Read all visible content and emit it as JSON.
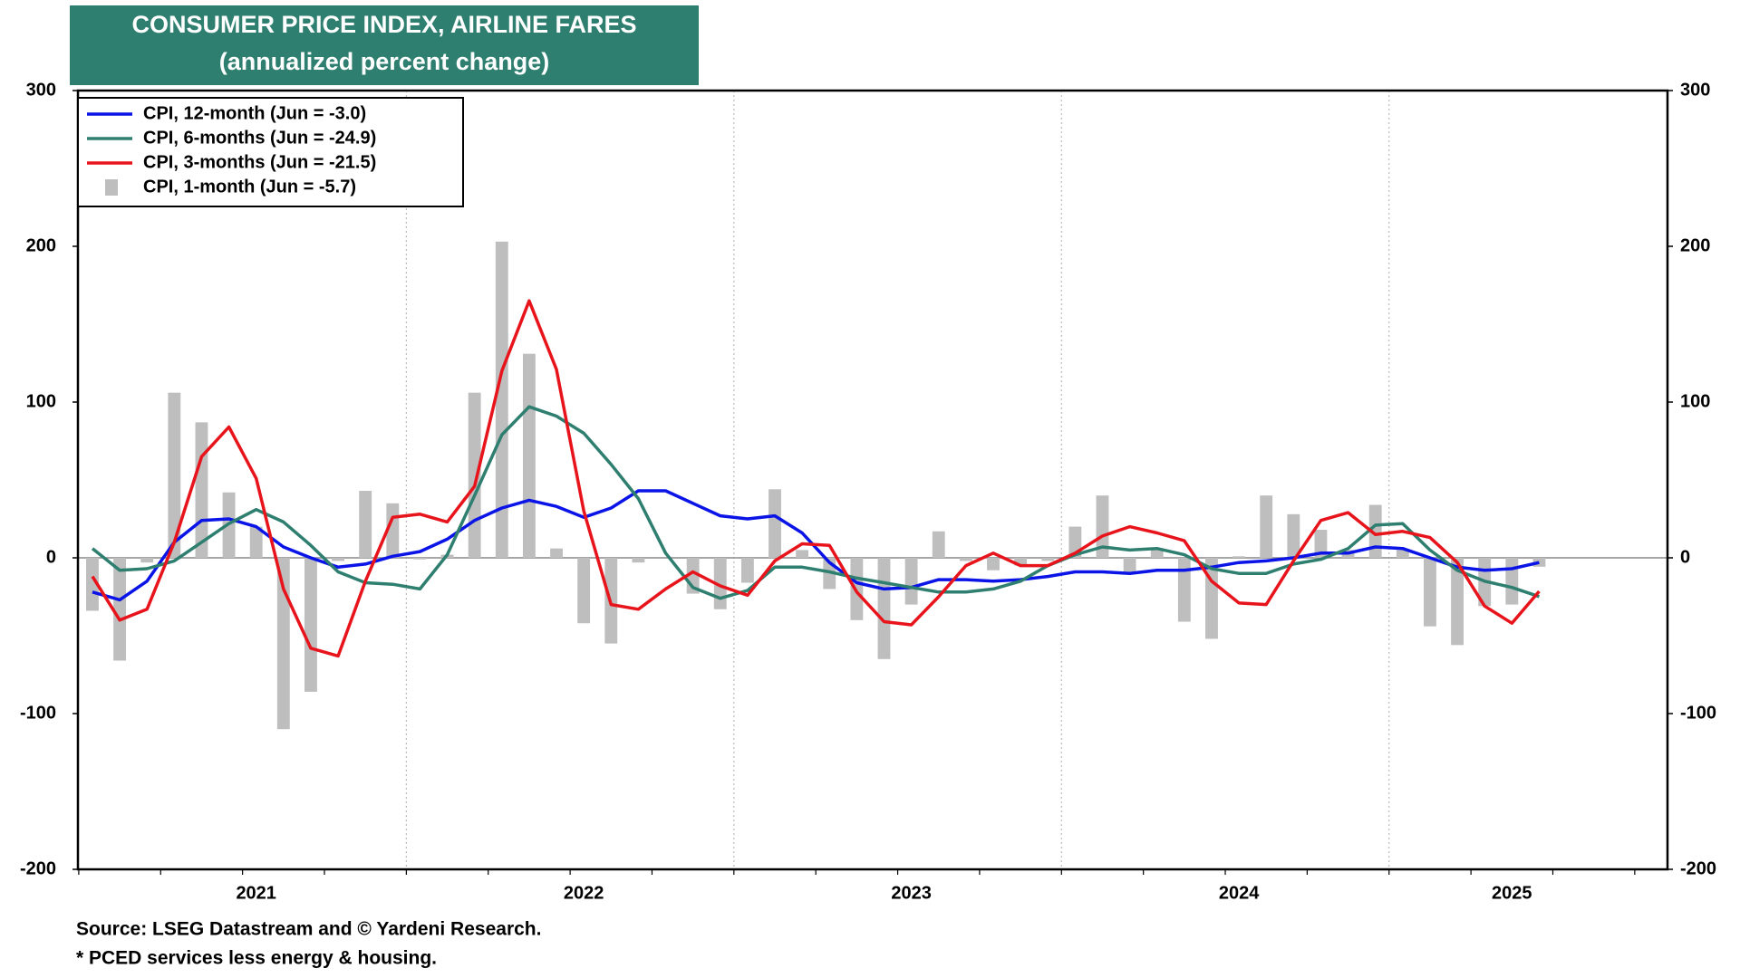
{
  "chart_data": {
    "type": "combo",
    "title": "CONSUMER PRICE INDEX, AIRLINE FARES",
    "subtitle": "(annualized percent change)",
    "notes": [
      "Source: LSEG Datastream and © Yardeni Research.",
      "* PCED services less energy & housing."
    ],
    "categories": [
      null,
      null,
      null,
      null,
      null,
      null,
      "2021",
      null,
      null,
      null,
      null,
      null,
      null,
      null,
      null,
      null,
      null,
      null,
      "2022",
      null,
      null,
      null,
      null,
      null,
      null,
      null,
      null,
      null,
      null,
      null,
      "2023",
      null,
      null,
      null,
      null,
      null,
      null,
      null,
      null,
      null,
      null,
      null,
      "2024",
      null,
      null,
      null,
      null,
      null,
      null,
      null,
      null,
      null,
      "2025",
      null
    ],
    "ylim": [
      -200,
      300
    ],
    "yticks": [
      -200,
      -100,
      0,
      100,
      200,
      300
    ],
    "y2lim": [
      -200,
      300
    ],
    "y2ticks": [
      -200,
      -100,
      0,
      100,
      200,
      300
    ],
    "grid": true,
    "legend": "top-left",
    "series": [
      {
        "name": "CPI, 12-month (Jun = -3.0)",
        "type": "line",
        "color": "#0a14e6",
        "values": [
          -22,
          -27,
          -15,
          10,
          24,
          25,
          20,
          7,
          0,
          -6,
          -4,
          1,
          4,
          12,
          24,
          32,
          37,
          33,
          26,
          32,
          43,
          43,
          35,
          27,
          25,
          27,
          16,
          -3,
          -16,
          -20,
          -19,
          -14,
          -14,
          -15,
          -14,
          -12,
          -9,
          -9,
          -10,
          -8,
          -8,
          -6,
          -3,
          -2,
          0,
          3,
          3,
          7,
          6,
          0,
          -6,
          -8,
          -7,
          -3.0
        ]
      },
      {
        "name": "CPI, 6-months (Jun = -24.9)",
        "type": "line",
        "color": "#2e7f6f",
        "values": [
          6,
          -8,
          -7,
          -2,
          10,
          22,
          31,
          23,
          8,
          -9,
          -16,
          -17,
          -20,
          2,
          40,
          79,
          97,
          91,
          80,
          60,
          38,
          3,
          -19,
          -26,
          -21,
          -6,
          -6,
          -9,
          -13,
          -16,
          -19,
          -22,
          -22,
          -20,
          -15,
          -5,
          2,
          7,
          5,
          6,
          2,
          -7,
          -10,
          -10,
          -4,
          -1,
          6,
          21,
          22,
          5,
          -8,
          -15,
          -19,
          -24.9
        ]
      },
      {
        "name": "CPI, 3-months (Jun = -21.5)",
        "type": "line",
        "color": "#e8141c",
        "values": [
          -12,
          -40,
          -33,
          10,
          65,
          84,
          51,
          -20,
          -58,
          -63,
          -15,
          26,
          28,
          23,
          46,
          120,
          165,
          121,
          30,
          -30,
          -33,
          -20,
          -9,
          -18,
          -24,
          -2,
          9,
          8,
          -22,
          -41,
          -43,
          -25,
          -5,
          3,
          -5,
          -5,
          3,
          14,
          20,
          16,
          11,
          -15,
          -29,
          -30,
          -2,
          24,
          29,
          15,
          17,
          13,
          -3,
          -31,
          -42,
          -21.5
        ]
      },
      {
        "name": "CPI, 1-month (Jun = -5.7)",
        "type": "bar",
        "color": "#bebebe",
        "values": [
          -34,
          -66,
          -3,
          106,
          87,
          42,
          20,
          -110,
          -86,
          -2,
          43,
          35,
          -1,
          2,
          106,
          203,
          131,
          6,
          -42,
          -55,
          -3,
          0,
          -23,
          -33,
          -16,
          44,
          5,
          -20,
          -40,
          -65,
          -30,
          17,
          -2,
          -8,
          -5,
          -2,
          20,
          40,
          -10,
          5,
          -41,
          -52,
          1,
          40,
          28,
          18,
          5,
          34,
          5,
          -44,
          -56,
          -31,
          -30,
          -5.7
        ]
      }
    ]
  }
}
